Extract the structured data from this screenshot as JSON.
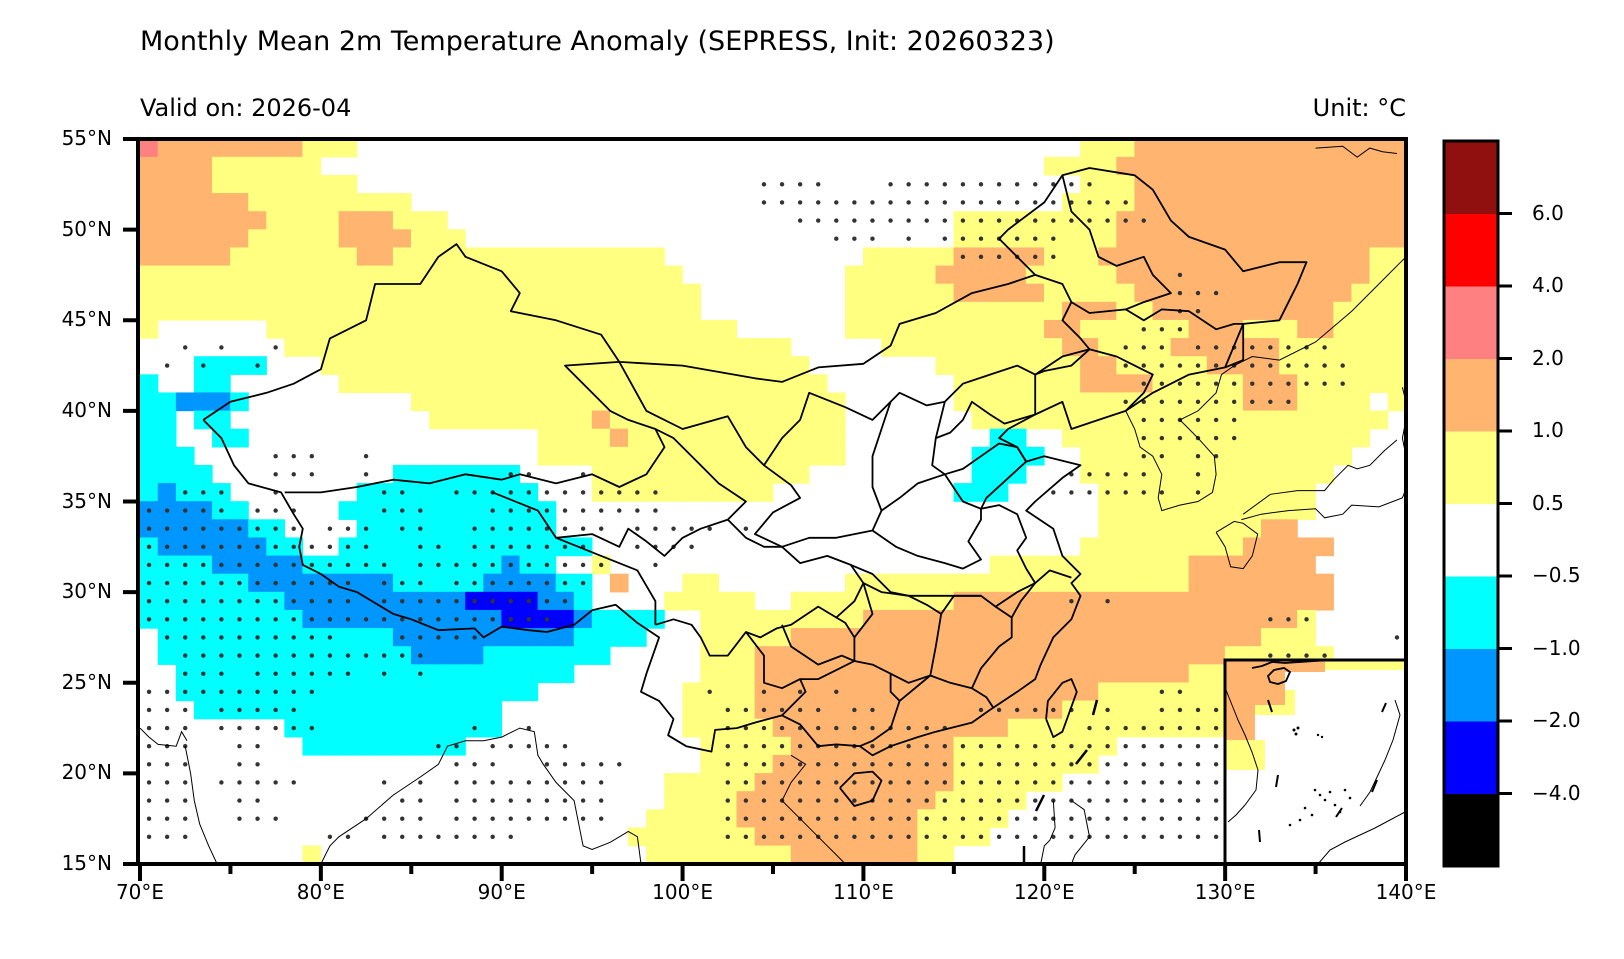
{
  "header": {
    "title": "Monthly Mean 2m Temperature Anomaly (SEPRESS, Init: 20260323)",
    "valid_on": "Valid on: 2026-04",
    "unit": "Unit: °C"
  },
  "chart_data": {
    "type": "heatmap",
    "title": "Monthly Mean 2m Temperature Anomaly (SEPRESS, Init: 20260323)",
    "subtitle_left": "Valid on: 2026-04",
    "subtitle_right": "Unit: °C",
    "xlim": [
      70,
      140
    ],
    "ylim": [
      15,
      55
    ],
    "grid_resolution_deg": 1,
    "x_ticks": [
      70,
      80,
      90,
      100,
      110,
      120,
      130,
      140
    ],
    "x_tick_labels": [
      "70°E",
      "80°E",
      "90°E",
      "100°E",
      "110°E",
      "120°E",
      "130°E",
      "140°E"
    ],
    "y_ticks": [
      55,
      50,
      45,
      40,
      35,
      30,
      25,
      20,
      15
    ],
    "y_tick_labels": [
      "55°N",
      "50°N",
      "45°N",
      "40°N",
      "35°N",
      "30°N",
      "25°N",
      "20°N",
      "15°N"
    ],
    "colorbar": {
      "position": "right",
      "bounds": [
        -6.0,
        -4.0,
        -2.0,
        -1.0,
        -0.5,
        0.5,
        1.0,
        2.0,
        4.0,
        6.0,
        8.0
      ],
      "tick_values": [
        -4.0,
        -2.0,
        -1.0,
        -0.5,
        0.5,
        1.0,
        2.0,
        4.0,
        6.0
      ],
      "tick_labels": [
        "−4.0",
        "−2.0",
        "−1.0",
        "−0.5",
        "0.5",
        "1.0",
        "2.0",
        "4.0",
        "6.0"
      ],
      "colors_bottom_to_top": [
        "#000000",
        "#0000ff",
        "#0096ff",
        "#00ffff",
        "#ffffff",
        "#ffff80",
        "#ffb470",
        "#ff8080",
        "#ff0000",
        "#901010"
      ]
    },
    "category_legend": {
      "k": {
        "range": "< -4.0",
        "color": "#000000"
      },
      "d": {
        "range": "-4.0 to -2.0",
        "color": "#0000ff"
      },
      "b": {
        "range": "-2.0 to -1.0",
        "color": "#0096ff"
      },
      "c": {
        "range": "-1.0 to -0.5",
        "color": "#00ffff"
      },
      "0": {
        "range": "-0.5 to 0.5",
        "color": "#ffffff"
      },
      "y": {
        "range": "0.5 to 1.0",
        "color": "#ffff80"
      },
      "o": {
        "range": "1.0 to 2.0",
        "color": "#ffb470"
      },
      "p": {
        "range": "2.0 to 4.0",
        "color": "#ff8080"
      },
      "r": {
        "range": "4.0 to 6.0",
        "color": "#ff0000"
      },
      "m": {
        "range": "> 6.0",
        "color": "#901010"
      }
    },
    "anomaly_rows_north_to_south": [
      "pooooooooyyy0000000000000000000000000000000000000000yyyooooooooooooooo",
      "ooooyyyyyy0000000000000000000000000000000000000000yyyyoooooooooooooooo",
      "ooooyyyyyyyy0000000000000000000000000000000000000000yyyooooooooooooooo",
      "ooooooyyyyyyyyy000000000000000000000000000000000000yyyyooooooooooooooo",
      "oooooooyyyyoooyyy0000000000000000000000000000yyyyyyyyyoooooooooooooooo",
      "ooooooyyyyyooooyyy000000000000000000000000000yyyyyyyyyoooooooooooooooo",
      "oooooyyyyyyyooyyyyyyyyyyyyyyy00000000000yyyyyoooooyyyoooooooooooooooyy",
      "yyyyyyyyyyyyyyyyyyyyyyyyyyyyyy000000000yyyyyoooooyyyyyooooooooooooooyy",
      "yyyyyyyyyyyyyyyyyyyyyyyyyyyyyyy00000000yyyyyyoooooyyyyyooooooooooooyyy",
      "yyyyyyyyyyyyyyyyyyyyyyyyyyyyyyy00000000yyyyyyyyyyyyoooyyooooooooooyyyy",
      "y000000yyyyyyyyyyyyyyyyyyyyyyyyyy000000yyyyyyyyyyyooyyyyyyoooyyyooyyyy",
      "00000000yyyyyyyyyyyyyyyyyyyyyyyyyyyy00000yyyyyyyyyyooyyyyooooooyyyyyyy",
      "000cccc000yyyyyyyyyyyyyyyyyyyyyyyyyyy0000000yyyyyyyyooyyyyyooooyyyyyyy",
      "c00cc000000yyyyyyyyyyyyyyyyyyyyyyyyyyy0000000yyyyyyyooooyyyyyoooyyyyyy",
      "ccbbbc000000000yyyyyyyyyyyyyyyyyyyyyyyy000000yyyyyyyyyyyyyyyyoooyyyy0y",
      "cc0cc00000000000yyyyyyyyyoyyyyyyyyyyyyy0000000yyyyyyyyyyyyyyyyyyyyyyy0",
      "cc00cc0000000000000000yyyyoyyyyyyyyyyyy00000000cc00yyyyyyyyyyyyyyyyy00",
      "ccc0000000000000000000yyyyyyyyyyyyyyyyy0000000cccc00yyyyyyyyyyyyyyy000",
      "cccc0000000000ccccccc0000yyyyyyyyyyyy000000000ccc000yyyyyyyyyyyyyy0000",
      "cbccc0000000cccccccccc000yyyyyyyyyy0000000000ccc00000yyyyyyyyyyyy00000",
      "bbbbcc00000cccccccccccc000000000000000000000000000000yyyyyyyyyyyy00000",
      "bbbbbbcc0000ccccccccccc000000000000000000000000000000yyyyyyyyyoo000000",
      "cbbbbbbcc00cccccccccccccc000000000000000000000000000yyyyyyyyyooooo0000",
      "ccccbbbbbcccccccccccbcc00y000000000000000000000yyyyyyyyyyyooooooo00000",
      "ccccccbbbbbbbbcccccbbbbcc0o000yy0000000yyyyyyyyyyyyyyyyyyyoooooooo0000",
      "ccccccccbbbbbbbbbbddddbbc0000yyyyy00yyyyyyyyyooooooooooooooooooooo0000",
      "cccccccccbbbbbbbbbbbddddbcccc00yyyyyyyyyooooooooooooooooooooooooy00000",
      "0cccccccccccccbbbbbbbbbbcccc000yyyyyooooooooooooooooooooooooooyyy00000",
      "0ccccccccccccccbbbbccccccc00000yyyooooooooooooooooooooooooooyyyyyy0000",
      "00cccccccccccccccccccccc0000000yyyooooooooooooooooooooooooyyyyyyyyy000",
      "00cccccccccccccccccccc00000000yyyyoooooooooooooooooooyyyyyyyyyyyyy0000",
      "000ccccccccccccccccc0000000000yyyyoooooooooooooooooyyyyyyyyyyyyy000000",
      "00000000cccccccccccc0000000000yyyyyoooooooooooooyyyyyyyyyyyyyyy0000000",
      "000000000ccccccccc0000000000000yyyyyoooooooooyyyyyyyyy0000000000000000",
      "0000000000000000000000000000000yyyyooooooooooyyyyyyyy00000000000000000",
      "00000000000000000000000000000yyyyyoooooooooooyyyyyy0000000000000000000",
      "00000000000000000000000000000yyyyoooooooooooyyyyy000000000000000000000",
      "0000000000000000000000000000yyyyyooooooooooyyyyy0000000000000000000000",
      "000000000000000000000000000yyyyyyyoooooooooyyyy00000000000000000000000",
      "000000000y000000000000000000yyyyyyyyoooooooyy0000000000000000000000000"
    ],
    "stipple_rows_north_to_south": [
      "......................................................................",
      "......................................................................",
      "..................................xxxx...xxxxxxxxxxxx.................",
      "..................................xxxxxxxxxxxxxxxxxxxxx...............",
      "....................................xxxxxxxxxxxxxxxxxxxx..............",
      "......................................xxx.x.xxxxxxx...................",
      ".............................................xxxxxx...................",
      ".........................................................x............",
      ".........................................................xxx..........",
      ".........................................................xx...........",
      ".......................................................xxx............",
      "..x.x..x..............................................xxx.xxxxxxxx....",
      ".x.x..x...............................................xxxxxxxxxxxxx...",
      ".......................................................xxxxxxxxxxxx...",
      "......................................................xxxxxxxxxx......",
      ".......................................................xxxxxx........",
      ".......................................................xxxxxx........",
      ".......xxx..x..........................................xx.xx.........",
      ".......xxx..x.......xx..x..........................xxxxx..x..........",
      "..xxx..x.....xx..xxxxxxxxxxxx.....................xxxxxxx.x..........",
      "xxxxx.xxx....xxx...xxxxxxxxxx.........................................",
      "xxxxxxxxx.xxx.xx..xxxxxxxx.xxxxx.x....................................",
      "xxxxxxxxxxxxx..xx.xxxxxxx..xxxx.......................................",
      "xxxxxxxxxxxxxx.xxxxxxxxxxx..x.........................................",
      "xxxxxxxxxxxx.xxx.xxxxxxxx.............................................",
      "xxxxxxxxxxxx.xxxxxxxxxxx...........................x.x................",
      "xxxxxxxxxxxxxxxxxxxxxxx.......................................xxx.....",
      ".xxxxxxxxxx...xxxxx..................................................x",
      "..xxxxxxxxxxxxxx..............................................xxxx....",
      "..xxx.xxxxxx.x.x..............................................xxx.....",
      "xxxxxxxxxx.....................x..x.x.x.................xx...xxxxxxx.",
      "xxx.xxxxx.......................xxxxxx.xx.....xxxxxx.x..xxxxxxxxxxxx.",
      "xxx.xxxxxx........x..x..........xxxxxxxxxxxxx.......xxxxxxxxxxxxxxx..",
      "xxx..xx.........xx.xxxxx........xxxxxxxxxxxxxxxxxxxxxxxxxxxxxxxxxxx..",
      "xxx..xx..........xxx..xxxxx.....xxxxxxxxxxxxxxxxxxxxxxxxxxxxxxxxxxx..",
      "xxx.xxxxx....x.x.xxxxxxxxx......xxxxxxxxxxxxxxxxxxxxxxxxxxxxxxxxxxx..",
      "xxx..xx.......xx.xxxxxxxxx......xxxxxxxxxxxxxxxxxxxxxxxxxxxxxxxxxxx..",
      "xxx..xxx....xxxx.xxxxxxxxx......xxxxxxxxxxxxxxxxxxxxxxxxxxxxxxxxxxx..",
      "xxx.......xx.xxxxxxxx...........xxxxxxxxxxxxxxxxxxxxxxxxxxxxxxxxxxx..",
      "......................................................................"
    ]
  },
  "colors": {
    "border": "#000000",
    "stipple": "#333333"
  }
}
